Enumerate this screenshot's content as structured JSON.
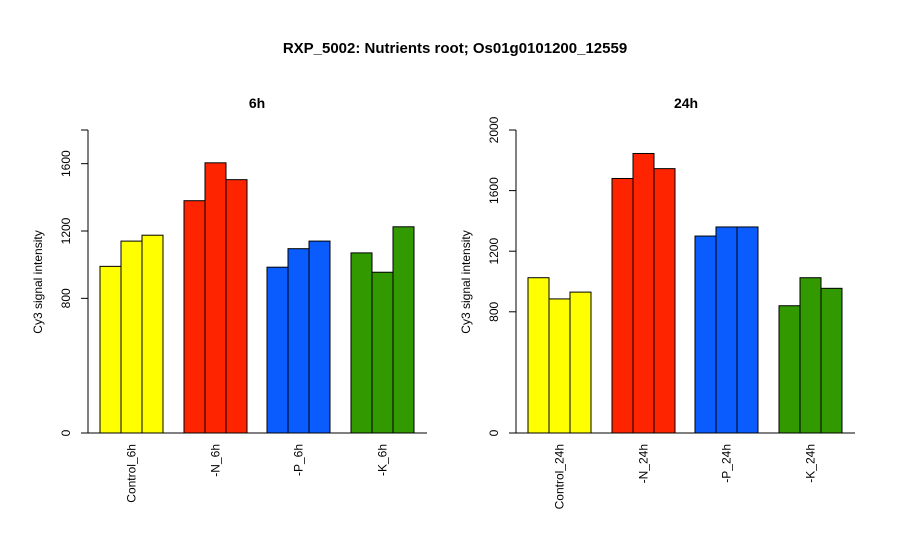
{
  "title": "RXP_5002: Nutrients root; Os01g0101200_12559",
  "chart_data": [
    {
      "type": "bar",
      "title": "6h",
      "ylabel": "Cy3 signal intensity",
      "ylim": [
        0,
        1800
      ],
      "yticks": [
        0,
        800,
        1200,
        1600
      ],
      "categories": [
        "Control_6h",
        "-N_6h",
        "-P_6h",
        "-K_6h"
      ],
      "colors": [
        "#ffff00",
        "#ff2400",
        "#0a5cff",
        "#339900"
      ],
      "values": [
        [
          990,
          1140,
          1175
        ],
        [
          1380,
          1605,
          1505
        ],
        [
          985,
          1095,
          1140
        ],
        [
          1070,
          955,
          1225
        ]
      ]
    },
    {
      "type": "bar",
      "title": "24h",
      "ylabel": "Cy3 signal intensity",
      "ylim": [
        0,
        2000
      ],
      "yticks": [
        0,
        800,
        1200,
        1600,
        2000
      ],
      "categories": [
        "Control_24h",
        "-N_24h",
        "-P_24h",
        "-K_24h"
      ],
      "colors": [
        "#ffff00",
        "#ff2400",
        "#0a5cff",
        "#339900"
      ],
      "values": [
        [
          1025,
          885,
          930
        ],
        [
          1680,
          1845,
          1745
        ],
        [
          1300,
          1360,
          1360
        ],
        [
          840,
          1025,
          955
        ]
      ]
    }
  ]
}
